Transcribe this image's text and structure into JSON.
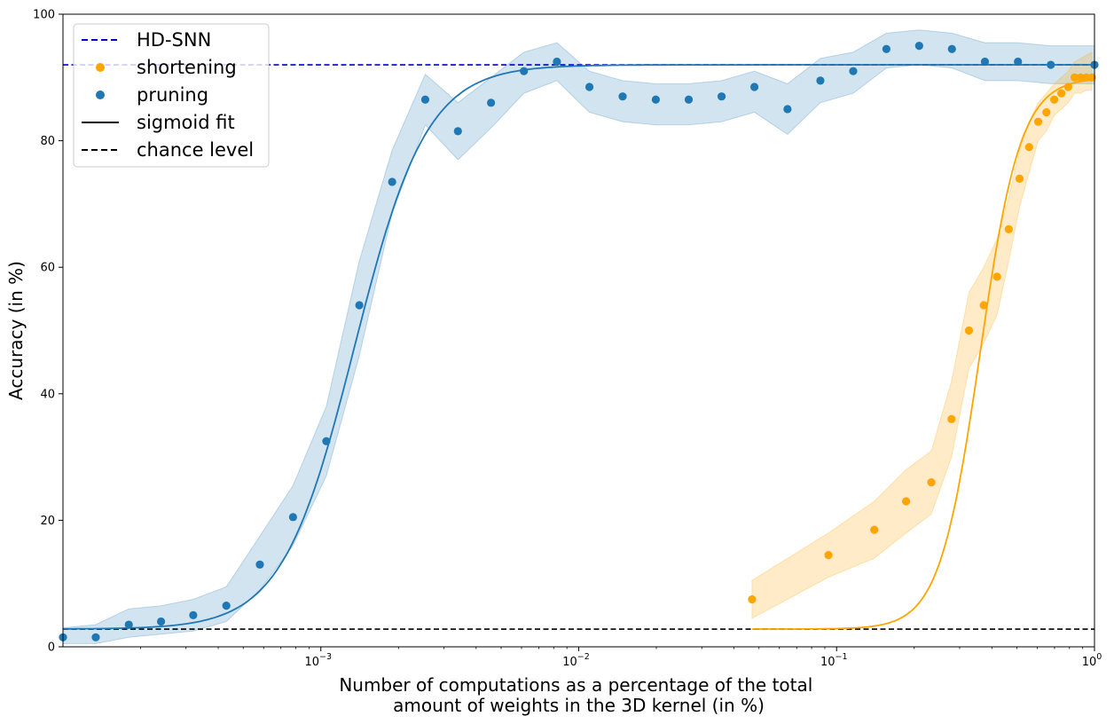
{
  "chart_data": {
    "type": "line",
    "xscale": "log",
    "xlim": [
      0.0001,
      1
    ],
    "ylim": [
      0,
      100
    ],
    "xlabel": [
      "Number of computations as a percentage of the total",
      "amount of weights in the 3D kernel (in %)"
    ],
    "ylabel": "Accuracy (in %)",
    "x_ticks": [
      {
        "value": 0.001,
        "base": "10",
        "exp": "−3"
      },
      {
        "value": 0.01,
        "base": "10",
        "exp": "−2"
      },
      {
        "value": 0.1,
        "base": "10",
        "exp": "−1"
      },
      {
        "value": 1,
        "base": "10",
        "exp": "0"
      }
    ],
    "y_ticks": [
      "0",
      "20",
      "40",
      "60",
      "80",
      "100"
    ],
    "grid": false,
    "legend": {
      "position": "top-left",
      "entries": [
        {
          "label": "HD-SNN",
          "style": "dashed-line",
          "color": "#0000cc"
        },
        {
          "label": "shortening",
          "style": "marker",
          "color": "#ffa500"
        },
        {
          "label": "pruning",
          "style": "marker",
          "color": "#1f77b4"
        },
        {
          "label": "sigmoid fit",
          "style": "solid-line",
          "color": "#000000"
        },
        {
          "label": "chance level",
          "style": "dashed-line",
          "color": "#000000"
        }
      ]
    },
    "reference_lines": [
      {
        "label": "HD-SNN",
        "y": 92.0,
        "color": "#0000cc"
      },
      {
        "label": "chance level",
        "y": 2.8,
        "color": "#000000"
      }
    ],
    "series": [
      {
        "name": "pruning",
        "color": "#1f77b4",
        "points": [
          {
            "x": 0.0001,
            "y": 1.5
          },
          {
            "x": 0.000134,
            "y": 1.5
          },
          {
            "x": 0.00018,
            "y": 3.5
          },
          {
            "x": 0.00024,
            "y": 4.0
          },
          {
            "x": 0.00032,
            "y": 5.0
          },
          {
            "x": 0.00043,
            "y": 6.5
          },
          {
            "x": 0.00058,
            "y": 13.0
          },
          {
            "x": 0.00078,
            "y": 20.5
          },
          {
            "x": 0.00105,
            "y": 32.5
          },
          {
            "x": 0.00141,
            "y": 54.0
          },
          {
            "x": 0.00189,
            "y": 73.5
          },
          {
            "x": 0.00254,
            "y": 86.5
          },
          {
            "x": 0.0034,
            "y": 81.5
          },
          {
            "x": 0.00457,
            "y": 86.0
          },
          {
            "x": 0.00613,
            "y": 91.0
          },
          {
            "x": 0.00823,
            "y": 92.5
          },
          {
            "x": 0.011,
            "y": 88.5
          },
          {
            "x": 0.0148,
            "y": 87.0
          },
          {
            "x": 0.0199,
            "y": 86.5
          },
          {
            "x": 0.0267,
            "y": 86.5
          },
          {
            "x": 0.0358,
            "y": 87.0
          },
          {
            "x": 0.048,
            "y": 88.5
          },
          {
            "x": 0.0645,
            "y": 85.0
          },
          {
            "x": 0.0865,
            "y": 89.5
          },
          {
            "x": 0.116,
            "y": 91.0
          },
          {
            "x": 0.156,
            "y": 94.5
          },
          {
            "x": 0.209,
            "y": 95.0
          },
          {
            "x": 0.28,
            "y": 94.5
          },
          {
            "x": 0.376,
            "y": 92.5
          },
          {
            "x": 0.505,
            "y": 92.5
          },
          {
            "x": 0.677,
            "y": 92.0
          },
          {
            "x": 1.0,
            "y": 92.0
          }
        ],
        "band_upper": [
          3.0,
          3.5,
          6.0,
          6.5,
          7.5,
          9.5,
          17.5,
          25.5,
          38.0,
          61.0,
          78.5,
          90.5,
          86.0,
          90.0,
          94.0,
          95.5,
          91.0,
          89.5,
          89.0,
          89.0,
          89.5,
          91.0,
          89.0,
          93.0,
          94.0,
          97.0,
          97.5,
          97.0,
          95.5,
          95.5,
          95.0,
          95.0
        ],
        "band_lower": [
          0.5,
          0.5,
          1.5,
          2.0,
          2.5,
          4.0,
          9.0,
          16.0,
          27.0,
          46.0,
          68.5,
          82.5,
          77.0,
          82.0,
          87.5,
          89.5,
          84.5,
          83.0,
          82.5,
          82.5,
          83.0,
          84.5,
          81.0,
          86.0,
          87.5,
          91.5,
          92.0,
          91.5,
          89.5,
          89.5,
          89.0,
          89.0
        ],
        "fit": {
          "bottom": 2.8,
          "top": 92.0,
          "x0": 0.00135,
          "slope": 3.1
        }
      },
      {
        "name": "shortening",
        "color": "#ffa500",
        "points": [
          {
            "x": 0.047,
            "y": 7.5
          },
          {
            "x": 0.093,
            "y": 14.5
          },
          {
            "x": 0.14,
            "y": 18.5
          },
          {
            "x": 0.186,
            "y": 23.0
          },
          {
            "x": 0.233,
            "y": 26.0
          },
          {
            "x": 0.279,
            "y": 36.0
          },
          {
            "x": 0.326,
            "y": 50.0
          },
          {
            "x": 0.372,
            "y": 54.0
          },
          {
            "x": 0.419,
            "y": 58.5
          },
          {
            "x": 0.465,
            "y": 66.0
          },
          {
            "x": 0.512,
            "y": 74.0
          },
          {
            "x": 0.558,
            "y": 79.0
          },
          {
            "x": 0.605,
            "y": 83.0
          },
          {
            "x": 0.651,
            "y": 84.5
          },
          {
            "x": 0.698,
            "y": 86.5
          },
          {
            "x": 0.744,
            "y": 87.5
          },
          {
            "x": 0.791,
            "y": 88.5
          },
          {
            "x": 0.837,
            "y": 90.0
          },
          {
            "x": 0.884,
            "y": 90.0
          },
          {
            "x": 0.93,
            "y": 90.0
          },
          {
            "x": 0.977,
            "y": 90.0
          }
        ],
        "band_upper": [
          10.5,
          18.0,
          23.0,
          28.0,
          31.0,
          42.0,
          56.0,
          60.0,
          64.5,
          71.0,
          78.5,
          83.0,
          86.0,
          87.5,
          89.0,
          90.0,
          91.0,
          92.5,
          93.0,
          93.5,
          94.0
        ],
        "band_lower": [
          4.5,
          11.0,
          14.0,
          18.0,
          21.0,
          30.0,
          44.0,
          48.0,
          52.5,
          61.0,
          69.5,
          75.0,
          80.0,
          81.5,
          84.0,
          85.0,
          86.0,
          87.5,
          87.5,
          88.0,
          88.0
        ],
        "fit": {
          "bottom": 2.8,
          "top": 90.0,
          "x0": 0.36,
          "slope": 5.5
        }
      }
    ]
  }
}
